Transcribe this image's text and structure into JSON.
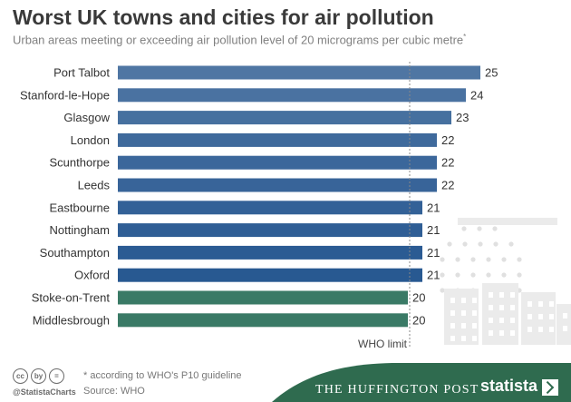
{
  "chart_data": {
    "type": "bar",
    "orientation": "horizontal",
    "title": "Worst UK towns and cities for air pollution",
    "subtitle": "Urban areas meeting or exceeding air pollution level of 20 micrograms per cubic metre",
    "subtitle_mark": "*",
    "categories": [
      "Port Talbot",
      "Stanford-le-Hope",
      "Glasgow",
      "London",
      "Scunthorpe",
      "Leeds",
      "Eastbourne",
      "Nottingham",
      "Southampton",
      "Oxford",
      "Stoke-on-Trent",
      "Middlesbrough"
    ],
    "values": [
      25,
      24,
      23,
      22,
      22,
      22,
      21,
      21,
      21,
      21,
      20,
      20
    ],
    "value_labels": [
      "25",
      "24",
      "23",
      "22",
      "22",
      "22",
      "21",
      "21",
      "21",
      "21",
      "20",
      "20"
    ],
    "bar_colors": [
      "#4f76a3",
      "#4a72a1",
      "#46709f",
      "#3f6a9c",
      "#3b679b",
      "#386499",
      "#336197",
      "#2f5e95",
      "#2b5b93",
      "#285991",
      "#3a7a66",
      "#3a7a66"
    ],
    "reference_line": {
      "value": 20,
      "label": "WHO limit"
    },
    "xlim": [
      0,
      26
    ],
    "grid": false,
    "legend": "none"
  },
  "footer": {
    "handle": "@StatistaCharts",
    "footnote": "* according to WHO's P10 guideline",
    "source": "Source: WHO",
    "partner": "THE HUFFINGTON POST",
    "brand": "statista",
    "cc_icons": [
      "cc",
      "by",
      "="
    ]
  },
  "colors": {
    "band": "#2f6b4f",
    "buildings": "#ebebeb",
    "bar_green": "#3a7a66"
  }
}
